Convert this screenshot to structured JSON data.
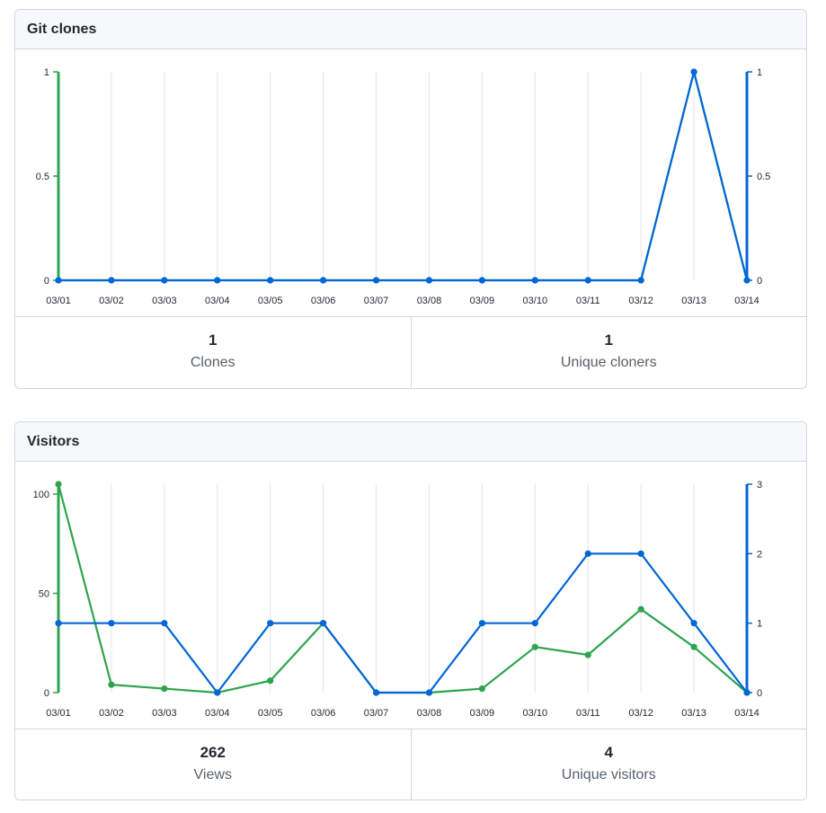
{
  "colors": {
    "primary": "#0366d6",
    "secondary": "#2ea44f",
    "grid": "#e1e4e8"
  },
  "clones": {
    "title": "Git clones",
    "stats": [
      {
        "value": "1",
        "label": "Clones"
      },
      {
        "value": "1",
        "label": "Unique cloners"
      }
    ]
  },
  "visitors": {
    "title": "Visitors",
    "stats": [
      {
        "value": "262",
        "label": "Views"
      },
      {
        "value": "4",
        "label": "Unique visitors"
      }
    ]
  },
  "chart_data": [
    {
      "type": "line",
      "categories": [
        "03/01",
        "03/02",
        "03/03",
        "03/04",
        "03/05",
        "03/06",
        "03/07",
        "03/08",
        "03/09",
        "03/10",
        "03/11",
        "03/12",
        "03/13",
        "03/14"
      ],
      "left_axis": {
        "ticks": [
          0,
          0.5,
          1
        ],
        "tick_labels": [
          "0",
          "0.5",
          "1"
        ],
        "ylim": [
          0,
          1
        ]
      },
      "right_axis": {
        "ticks": [
          0,
          0.5,
          1
        ],
        "tick_labels": [
          "0",
          "0.5",
          "1"
        ],
        "ylim": [
          0,
          1
        ]
      },
      "series": [
        {
          "axis": "left",
          "color": "#2ea44f",
          "values": [
            0,
            0,
            0,
            0,
            0,
            0,
            0,
            0,
            0,
            0,
            0,
            0,
            1,
            0
          ]
        },
        {
          "axis": "right",
          "color": "#0366d6",
          "values": [
            0,
            0,
            0,
            0,
            0,
            0,
            0,
            0,
            0,
            0,
            0,
            0,
            1,
            0
          ]
        }
      ],
      "grid": true
    },
    {
      "type": "line",
      "categories": [
        "03/01",
        "03/02",
        "03/03",
        "03/04",
        "03/05",
        "03/06",
        "03/07",
        "03/08",
        "03/09",
        "03/10",
        "03/11",
        "03/12",
        "03/13",
        "03/14"
      ],
      "left_axis": {
        "ticks": [
          0,
          50,
          100
        ],
        "tick_labels": [
          "0",
          "50",
          "100"
        ],
        "ylim": [
          0,
          105
        ]
      },
      "right_axis": {
        "ticks": [
          0,
          1,
          2,
          3
        ],
        "tick_labels": [
          "0",
          "1",
          "2",
          "3"
        ],
        "ylim": [
          0,
          3
        ]
      },
      "series": [
        {
          "axis": "left",
          "color": "#2ea44f",
          "values": [
            105,
            4,
            2,
            0,
            6,
            35,
            0,
            0,
            2,
            23,
            19,
            42,
            23,
            0
          ]
        },
        {
          "axis": "right",
          "color": "#0366d6",
          "values": [
            1,
            1,
            1,
            0,
            1,
            1,
            0,
            0,
            1,
            1,
            2,
            2,
            1,
            0
          ]
        }
      ],
      "grid": true
    }
  ]
}
